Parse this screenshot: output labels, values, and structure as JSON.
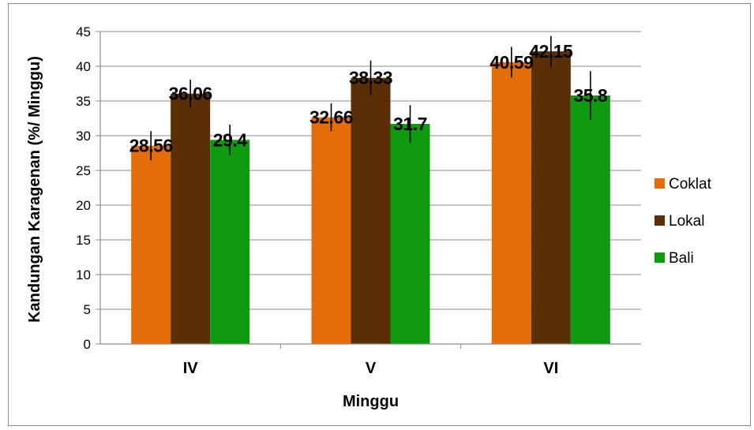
{
  "chart_data": {
    "type": "bar",
    "categories": [
      "IV",
      "V",
      "VI"
    ],
    "series": [
      {
        "name": "Coklat",
        "color": "#E46C0A",
        "values": [
          28.56,
          32.66,
          40.59
        ],
        "error": [
          2.1,
          2.0,
          2.2
        ]
      },
      {
        "name": "Lokal",
        "color": "#5C2E05",
        "values": [
          36.06,
          38.33,
          42.15
        ],
        "error": [
          2.0,
          2.5,
          2.2
        ]
      },
      {
        "name": "Bali",
        "color": "#0E9B10",
        "values": [
          29.4,
          31.7,
          35.8
        ],
        "error": [
          2.2,
          2.7,
          3.5
        ]
      }
    ],
    "data_labels": [
      [
        "28.56",
        "32.66",
        "40.59"
      ],
      [
        "36.06",
        "38.33",
        "42.15"
      ],
      [
        "29.4",
        "31.7",
        "35.8"
      ]
    ],
    "xlabel": "Minggu",
    "ylabel": "Kandungan Karagenan (%/ Minggu)",
    "ylim": [
      0,
      45
    ],
    "yticks": [
      "0",
      "5",
      "10",
      "15",
      "20",
      "25",
      "30",
      "35",
      "40",
      "45"
    ],
    "grid": true,
    "legend_position": "right"
  }
}
